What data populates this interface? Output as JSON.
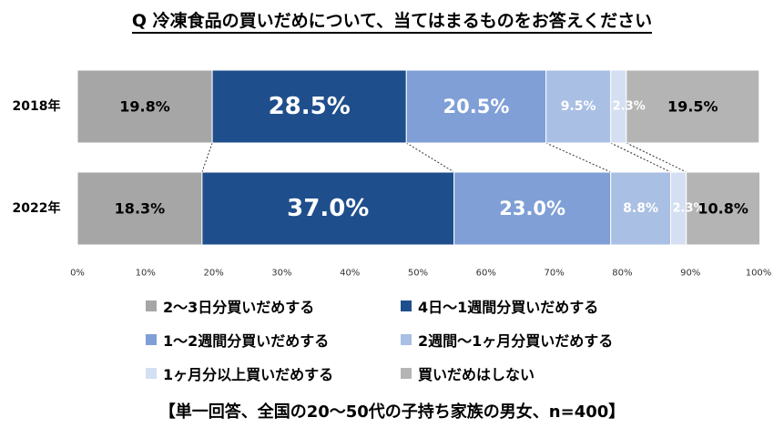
{
  "chart_data": {
    "type": "bar",
    "orientation": "horizontal-stacked",
    "title": "Q 冷凍食品の買いだめについて、当てはまるものをお答えください",
    "categories": [
      "2018年",
      "2022年"
    ],
    "series": [
      {
        "name": "2〜3日分買いだめする",
        "values": [
          19.8,
          18.3
        ],
        "labels": [
          "19.8%",
          "18.3%"
        ],
        "color": "#a6a6a6"
      },
      {
        "name": "4日〜1週間分買いだめする",
        "values": [
          28.5,
          37.0
        ],
        "labels": [
          "28.5%",
          "37.0%"
        ],
        "color": "#1f4e8c"
      },
      {
        "name": "1〜2週間分買いだめする",
        "values": [
          20.5,
          23.0
        ],
        "labels": [
          "20.5%",
          "23.0%"
        ],
        "color": "#7f9fd6"
      },
      {
        "name": "2週間〜1ヶ月分買いだめする",
        "values": [
          9.5,
          8.8
        ],
        "labels": [
          "9.5%",
          "8.8%"
        ],
        "color": "#a9bfe3"
      },
      {
        "name": "1ヶ月分以上買いだめする",
        "values": [
          2.3,
          2.3
        ],
        "labels": [
          "2.3%",
          "2.3%"
        ],
        "color": "#d5dff2"
      },
      {
        "name": "買いだめはしない",
        "values": [
          19.5,
          10.8
        ],
        "labels": [
          "19.5%",
          "10.8%"
        ],
        "color": "#b4b4b4"
      }
    ],
    "xlim": [
      0,
      100
    ],
    "x_ticks": [
      "0%",
      "10%",
      "20%",
      "30%",
      "40%",
      "50%",
      "60%",
      "70%",
      "80%",
      "90%",
      "100%"
    ],
    "legend_position": "bottom",
    "grid": false
  },
  "footnote": "【単一回答、全国の20〜50代の子持ち家族の男女、n=400】"
}
